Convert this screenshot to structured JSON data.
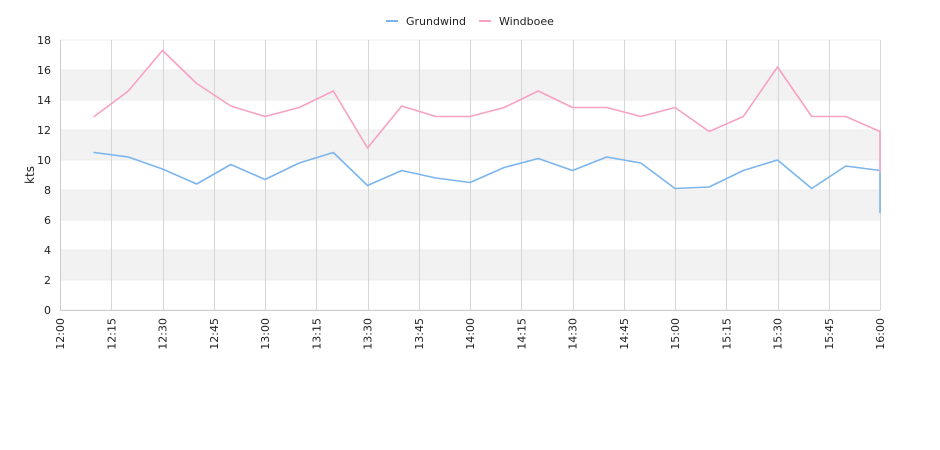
{
  "chart_data": {
    "type": "line",
    "ylabel": "kts",
    "ylim": [
      0,
      18
    ],
    "y_ticks": [
      0,
      2,
      4,
      6,
      8,
      10,
      12,
      14,
      16,
      18
    ],
    "x_ticks": [
      "12:00",
      "12:15",
      "12:30",
      "12:45",
      "13:00",
      "13:15",
      "13:30",
      "13:45",
      "14:00",
      "14:15",
      "14:30",
      "14:45",
      "15:00",
      "15:15",
      "15:30",
      "15:45",
      "16:00"
    ],
    "x_range": [
      "12:00",
      "16:00"
    ],
    "grid": "vertical lines, alternating horizontal bands",
    "legend_position": "top-center",
    "colors": {
      "Grundwind": "#7cb5ec",
      "Windboee": "#f7a1c4",
      "band": "#f2f2f2",
      "grid": "#d6d6d6"
    },
    "series": [
      {
        "name": "Grundwind",
        "x": [
          "12:10",
          "12:20",
          "12:30",
          "12:40",
          "12:50",
          "13:00",
          "13:10",
          "13:20",
          "13:30",
          "13:40",
          "13:50",
          "14:00",
          "14:10",
          "14:20",
          "14:30",
          "14:40",
          "14:50",
          "15:00",
          "15:10",
          "15:20",
          "15:30",
          "15:40",
          "15:50",
          "16:00",
          "16:00"
        ],
        "y": [
          10.5,
          10.2,
          9.4,
          8.4,
          9.7,
          8.7,
          9.8,
          10.5,
          8.3,
          9.3,
          8.8,
          8.5,
          9.5,
          10.1,
          9.3,
          10.2,
          9.8,
          8.1,
          8.2,
          9.3,
          10.0,
          8.1,
          9.6,
          9.3,
          6.5
        ]
      },
      {
        "name": "Windboee",
        "x": [
          "12:10",
          "12:20",
          "12:30",
          "12:40",
          "12:50",
          "13:00",
          "13:10",
          "13:20",
          "13:30",
          "13:40",
          "13:50",
          "14:00",
          "14:10",
          "14:20",
          "14:30",
          "14:40",
          "14:50",
          "15:00",
          "15:10",
          "15:20",
          "15:30",
          "15:40",
          "15:50",
          "16:00",
          "16:00"
        ],
        "y": [
          12.9,
          14.6,
          17.3,
          15.1,
          13.6,
          12.9,
          13.5,
          14.6,
          10.8,
          13.6,
          12.9,
          12.9,
          13.5,
          14.6,
          13.5,
          13.5,
          12.9,
          13.5,
          11.9,
          12.9,
          16.2,
          12.9,
          12.9,
          11.9,
          9.2
        ]
      }
    ]
  }
}
